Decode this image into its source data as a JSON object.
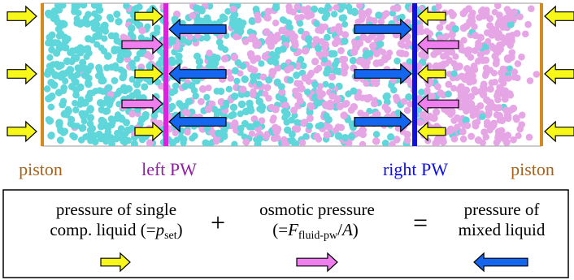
{
  "labels": {
    "piston_left": "piston",
    "left_pw": "left PW",
    "right_pw": "right PW",
    "piston_right": "piston"
  },
  "legend": {
    "term1_line1": "pressure of single",
    "term1_line2_pre": "comp. liquid (=",
    "term1_var": "p",
    "term1_sub": "set",
    "term1_line2_post": ")",
    "plus": "+",
    "term2_line1": "osmotic pressure",
    "term2_line2_pre": "(=",
    "term2_var": "F",
    "term2_sub": "fluid-pw",
    "term2_slash": "/",
    "term2_var2": "A",
    "term2_line2_post": ")",
    "equals": "=",
    "term3_line1": "pressure of",
    "term3_line2": "mixed liquid"
  },
  "colors": {
    "piston": "#d68a1c",
    "left_pw": "#e020e0",
    "right_pw": "#1010e0",
    "left_pw_text": "#9020a0",
    "right_pw_text": "#1010e0",
    "piston_text": "#a8621a",
    "cyan_particle": "#5fd6da",
    "pink_particle": "#e6a6e6",
    "yellow_arrow": "#f7f71a",
    "pink_arrow": "#ef7fef",
    "blue_arrow": "#1466ee"
  },
  "arrow_legend": {
    "term1_icon": "yellow-arrow-right",
    "term2_icon": "pink-arrow-right",
    "term3_icon": "blue-arrow-left"
  }
}
